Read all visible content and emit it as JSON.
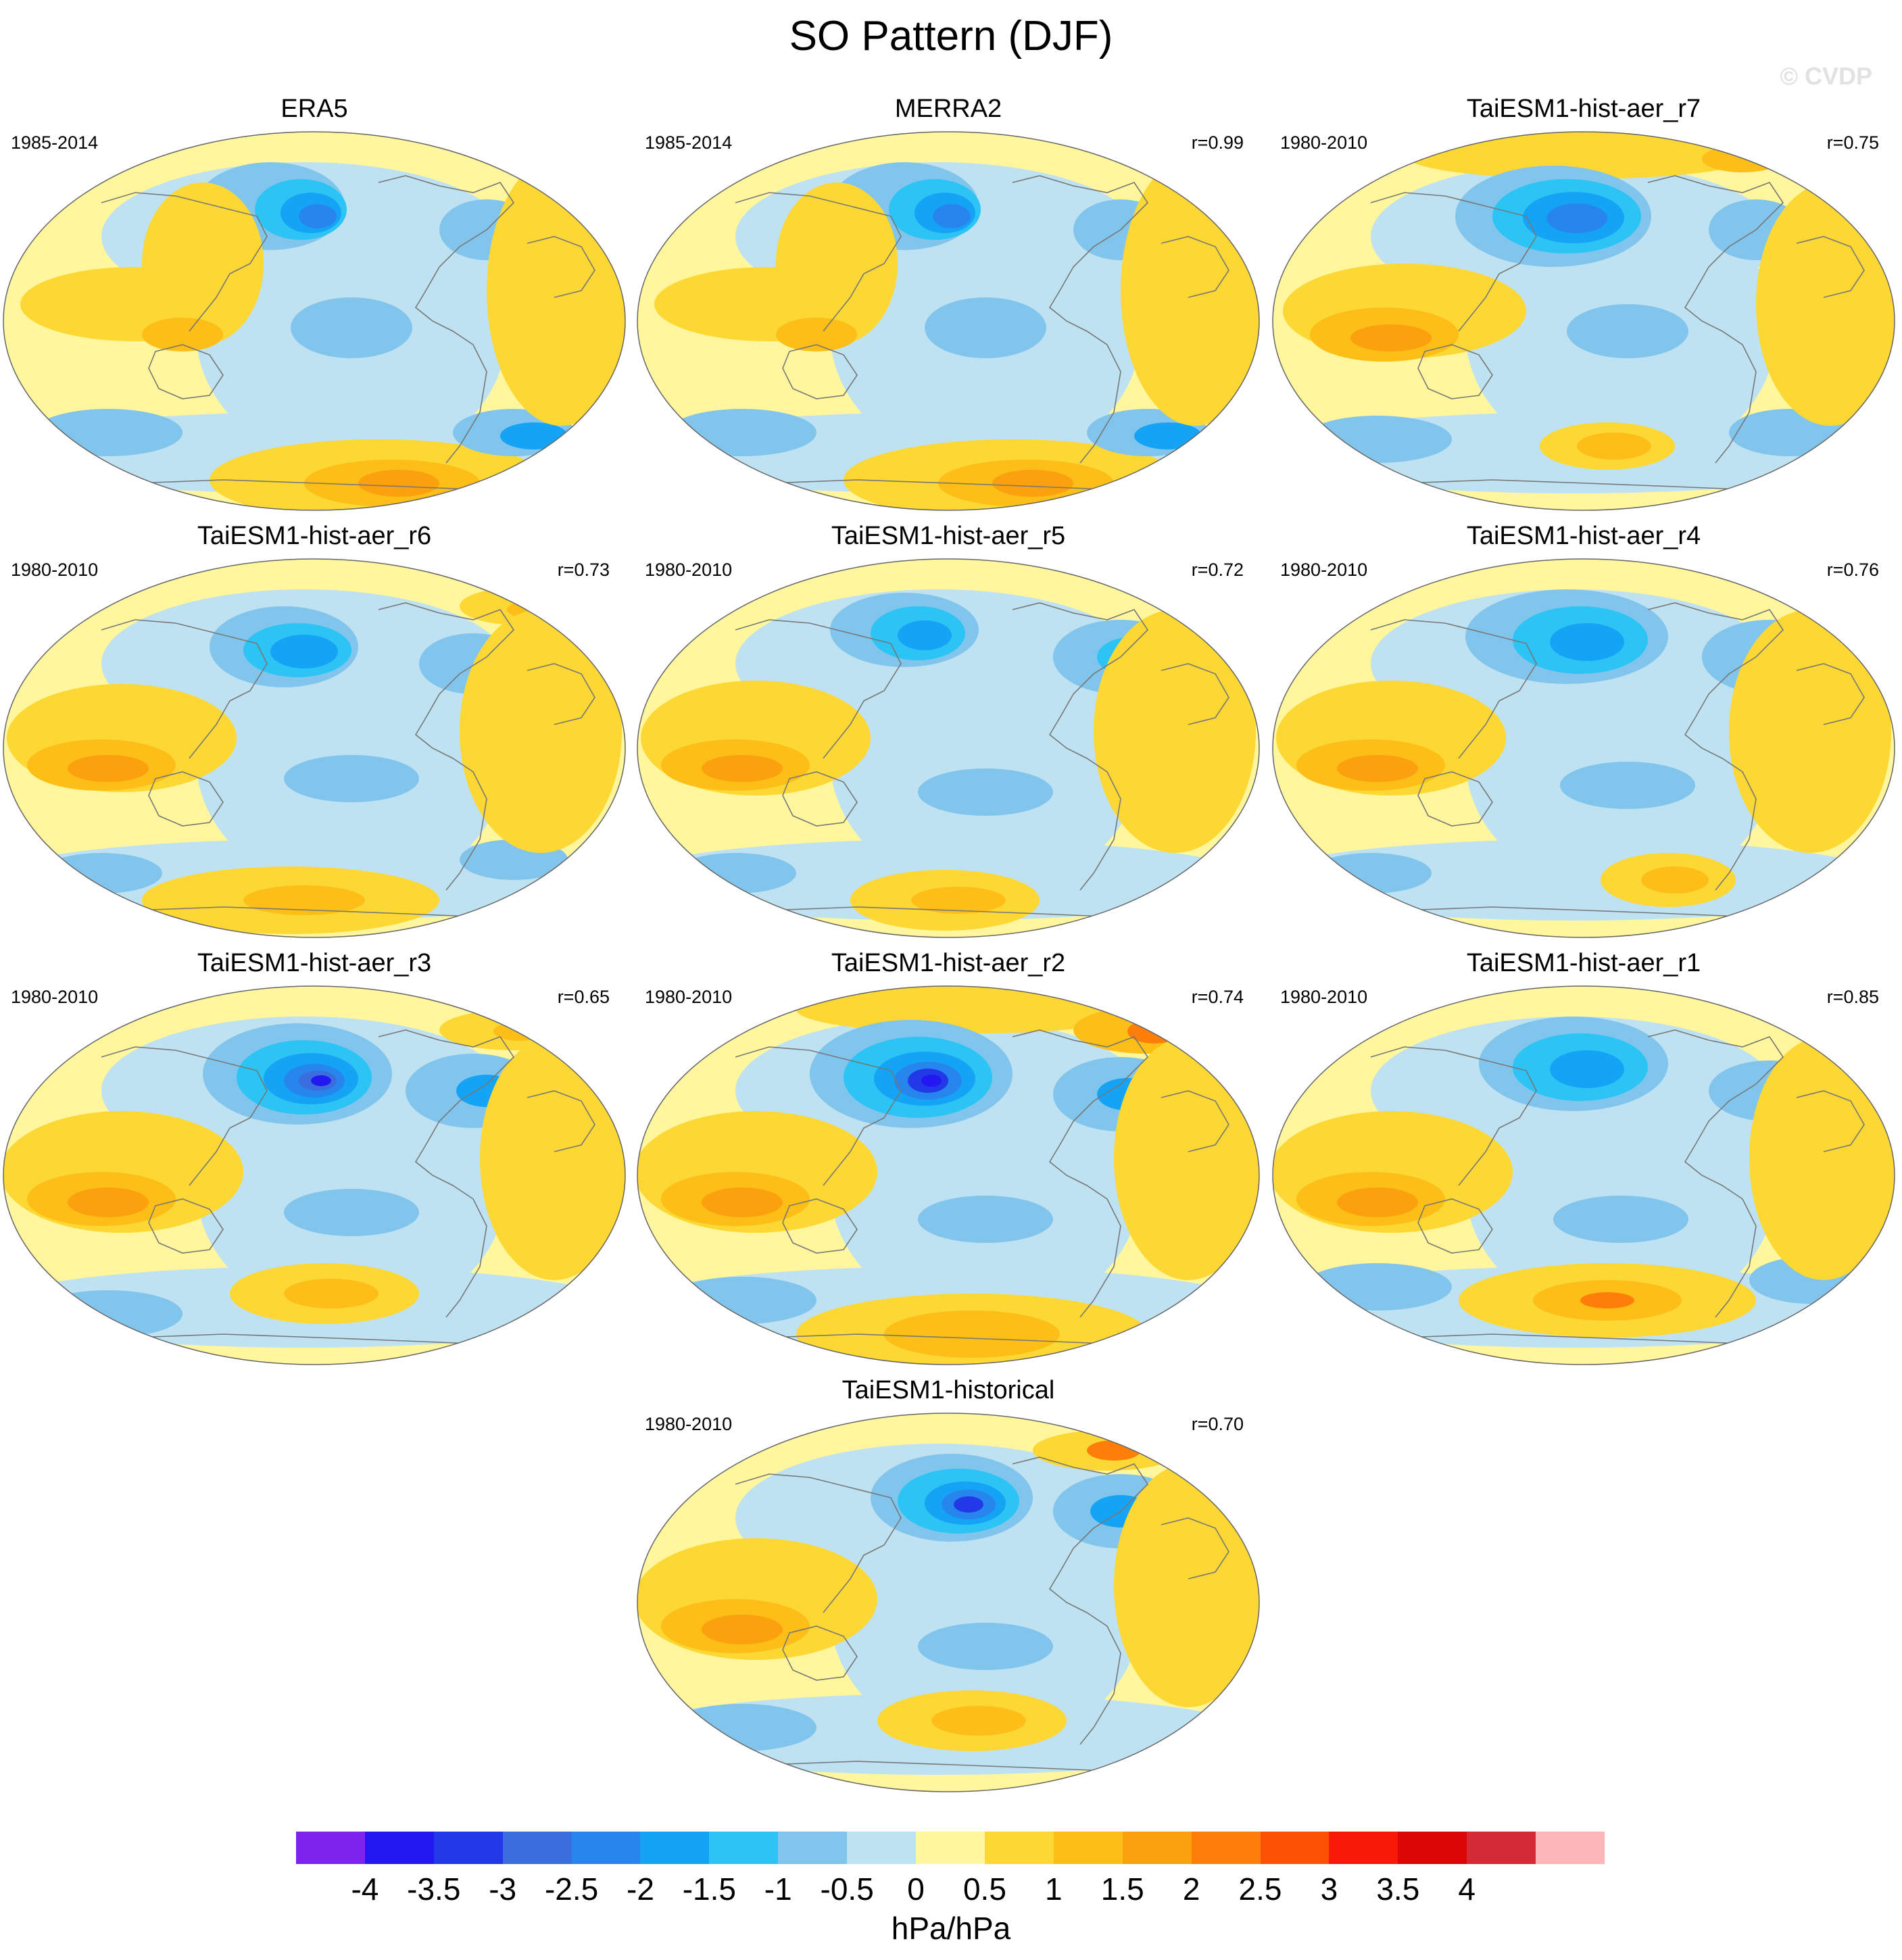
{
  "title": "SO Pattern (DJF)",
  "watermark": "© CVDP",
  "colors": {
    "c_m4": "#7f23ef",
    "c_m35": "#2418f2",
    "c_m3": "#2239e8",
    "c_m25": "#3a6ede",
    "c_m2": "#2786ee",
    "c_m15": "#15a4f5",
    "c_m1": "#2bc4f4",
    "c_m05": "#82c5ec",
    "c_0n": "#bfe2f3",
    "c_0p": "#fff69d",
    "c_05": "#fdd733",
    "c_1": "#fcbe17",
    "c_15": "#fba10d",
    "c_2": "#fd7e08",
    "c_25": "#fd5203",
    "c_3": "#f91908",
    "c_35": "#dc0606",
    "c_4": "#d32a35",
    "c_max": "#fdb6b7",
    "land": "#777777",
    "outline": "#666666"
  },
  "panels": [
    {
      "title": "ERA5",
      "period": "1985-2014",
      "corr": "",
      "blobs": [
        [
          "c_m05",
          400,
          115,
          110,
          65
        ],
        [
          "c_m1",
          445,
          120,
          68,
          45
        ],
        [
          "c_m15",
          460,
          125,
          45,
          30
        ],
        [
          "c_m2",
          470,
          130,
          28,
          18
        ],
        [
          "c_m05",
          720,
          150,
          70,
          45
        ],
        [
          "c_05",
          200,
          260,
          170,
          55
        ],
        [
          "c_05",
          300,
          200,
          90,
          120
        ],
        [
          "c_1",
          270,
          305,
          60,
          25
        ],
        [
          "c_m05",
          520,
          295,
          90,
          45
        ],
        [
          "c_05",
          560,
          520,
          250,
          60
        ],
        [
          "c_1",
          580,
          525,
          130,
          35
        ],
        [
          "c_15",
          590,
          525,
          60,
          20
        ],
        [
          "c_m05",
          160,
          450,
          110,
          35
        ],
        [
          "c_m05",
          760,
          450,
          90,
          35
        ],
        [
          "c_m15",
          790,
          455,
          50,
          20
        ],
        [
          "c_05",
          830,
          240,
          110,
          200
        ]
      ]
    },
    {
      "title": "MERRA2",
      "period": "1985-2014",
      "corr": "r=0.99",
      "blobs": [
        [
          "c_m05",
          400,
          115,
          110,
          65
        ],
        [
          "c_m1",
          445,
          120,
          68,
          45
        ],
        [
          "c_m15",
          460,
          125,
          45,
          30
        ],
        [
          "c_m2",
          470,
          130,
          28,
          18
        ],
        [
          "c_m05",
          720,
          150,
          70,
          45
        ],
        [
          "c_05",
          200,
          260,
          170,
          55
        ],
        [
          "c_05",
          300,
          200,
          90,
          120
        ],
        [
          "c_1",
          270,
          305,
          60,
          25
        ],
        [
          "c_m05",
          520,
          295,
          90,
          45
        ],
        [
          "c_05",
          560,
          520,
          250,
          60
        ],
        [
          "c_1",
          580,
          525,
          130,
          35
        ],
        [
          "c_15",
          590,
          525,
          60,
          20
        ],
        [
          "c_m05",
          160,
          450,
          110,
          35
        ],
        [
          "c_m05",
          760,
          450,
          90,
          35
        ],
        [
          "c_m15",
          790,
          455,
          50,
          20
        ],
        [
          "c_05",
          830,
          240,
          110,
          200
        ]
      ]
    },
    {
      "title": "TaiESM1-hist-aer_r7",
      "period": "1980-2010",
      "corr": "r=0.75",
      "blobs": [
        [
          "c_05",
          460,
          40,
          260,
          35
        ],
        [
          "c_1",
          700,
          45,
          60,
          20
        ],
        [
          "c_m05",
          420,
          130,
          145,
          75
        ],
        [
          "c_m1",
          440,
          130,
          110,
          55
        ],
        [
          "c_m15",
          450,
          132,
          75,
          38
        ],
        [
          "c_m2",
          455,
          133,
          45,
          22
        ],
        [
          "c_m05",
          720,
          150,
          70,
          45
        ],
        [
          "c_05",
          200,
          270,
          180,
          70
        ],
        [
          "c_1",
          170,
          305,
          110,
          40
        ],
        [
          "c_15",
          180,
          310,
          60,
          20
        ],
        [
          "c_m05",
          530,
          300,
          90,
          40
        ],
        [
          "c_05",
          500,
          470,
          100,
          35
        ],
        [
          "c_1",
          510,
          470,
          55,
          20
        ],
        [
          "c_m05",
          160,
          460,
          110,
          35
        ],
        [
          "c_m05",
          770,
          450,
          90,
          35
        ],
        [
          "c_05",
          830,
          260,
          110,
          180
        ]
      ]
    },
    {
      "title": "TaiESM1-hist-aer_r6",
      "period": "1980-2010",
      "corr": "r=0.73",
      "blobs": [
        [
          "c_05",
          770,
          75,
          90,
          28
        ],
        [
          "c_1",
          790,
          80,
          40,
          14
        ],
        [
          "c_m05",
          420,
          135,
          110,
          60
        ],
        [
          "c_m1",
          440,
          140,
          80,
          40
        ],
        [
          "c_m15",
          450,
          142,
          50,
          25
        ],
        [
          "c_m05",
          700,
          160,
          80,
          45
        ],
        [
          "c_05",
          180,
          270,
          170,
          80
        ],
        [
          "c_1",
          150,
          310,
          110,
          38
        ],
        [
          "c_15",
          160,
          315,
          60,
          20
        ],
        [
          "c_m05",
          520,
          330,
          100,
          35
        ],
        [
          "c_05",
          430,
          510,
          220,
          50
        ],
        [
          "c_1",
          450,
          510,
          90,
          22
        ],
        [
          "c_m05",
          150,
          470,
          90,
          30
        ],
        [
          "c_m05",
          760,
          450,
          80,
          30
        ],
        [
          "c_05",
          800,
          260,
          120,
          180
        ]
      ]
    },
    {
      "title": "TaiESM1-hist-aer_r5",
      "period": "1980-2010",
      "corr": "r=0.72",
      "blobs": [
        [
          "c_m05",
          400,
          110,
          110,
          55
        ],
        [
          "c_m1",
          420,
          115,
          70,
          40
        ],
        [
          "c_m15",
          430,
          118,
          40,
          22
        ],
        [
          "c_m05",
          720,
          150,
          100,
          55
        ],
        [
          "c_m1",
          740,
          150,
          55,
          30
        ],
        [
          "c_05",
          180,
          270,
          170,
          85
        ],
        [
          "c_1",
          150,
          310,
          110,
          38
        ],
        [
          "c_15",
          160,
          315,
          60,
          20
        ],
        [
          "c_m05",
          520,
          350,
          100,
          35
        ],
        [
          "c_05",
          460,
          510,
          140,
          45
        ],
        [
          "c_1",
          480,
          510,
          70,
          20
        ],
        [
          "c_m05",
          150,
          470,
          90,
          30
        ],
        [
          "c_05",
          800,
          260,
          120,
          180
        ]
      ]
    },
    {
      "title": "TaiESM1-hist-aer_r4",
      "period": "1980-2010",
      "corr": "r=0.76",
      "blobs": [
        [
          "c_m05",
          440,
          120,
          150,
          70
        ],
        [
          "c_m1",
          460,
          125,
          100,
          50
        ],
        [
          "c_m15",
          470,
          128,
          55,
          28
        ],
        [
          "c_m05",
          740,
          150,
          100,
          55
        ],
        [
          "c_m15",
          760,
          150,
          40,
          22
        ],
        [
          "c_05",
          180,
          270,
          170,
          85
        ],
        [
          "c_1",
          150,
          310,
          110,
          38
        ],
        [
          "c_15",
          160,
          315,
          60,
          20
        ],
        [
          "c_m05",
          530,
          340,
          100,
          35
        ],
        [
          "c_05",
          590,
          480,
          100,
          40
        ],
        [
          "c_1",
          600,
          480,
          50,
          20
        ],
        [
          "c_m05",
          150,
          470,
          90,
          30
        ],
        [
          "c_05",
          800,
          260,
          120,
          180
        ]
      ]
    },
    {
      "title": "TaiESM1-hist-aer_r3",
      "period": "1980-2010",
      "corr": "r=0.65",
      "blobs": [
        [
          "c_05",
          760,
          70,
          110,
          30
        ],
        [
          "c_1",
          770,
          72,
          40,
          14
        ],
        [
          "c_m05",
          440,
          135,
          140,
          75
        ],
        [
          "c_m1",
          450,
          140,
          100,
          55
        ],
        [
          "c_m15",
          460,
          142,
          70,
          38
        ],
        [
          "c_m2",
          465,
          145,
          45,
          25
        ],
        [
          "c_m25",
          470,
          145,
          28,
          15
        ],
        [
          "c_m35",
          475,
          145,
          15,
          8
        ],
        [
          "c_m05",
          700,
          160,
          100,
          55
        ],
        [
          "c_m15",
          720,
          160,
          45,
          24
        ],
        [
          "c_05",
          180,
          280,
          180,
          90
        ],
        [
          "c_1",
          150,
          320,
          110,
          40
        ],
        [
          "c_15",
          160,
          325,
          60,
          22
        ],
        [
          "c_m05",
          520,
          340,
          100,
          35
        ],
        [
          "c_05",
          480,
          460,
          140,
          45
        ],
        [
          "c_1",
          490,
          460,
          70,
          22
        ],
        [
          "c_m05",
          160,
          490,
          110,
          35
        ],
        [
          "c_05",
          820,
          260,
          110,
          180
        ]
      ]
    },
    {
      "title": "TaiESM1-hist-aer_r2",
      "period": "1980-2010",
      "corr": "r=0.74",
      "blobs": [
        [
          "c_05",
          500,
          40,
          260,
          35
        ],
        [
          "c_1",
          760,
          70,
          110,
          35
        ],
        [
          "c_2",
          770,
          72,
          40,
          18
        ],
        [
          "c_m05",
          410,
          135,
          150,
          80
        ],
        [
          "c_m1",
          420,
          140,
          110,
          60
        ],
        [
          "c_m15",
          430,
          142,
          75,
          40
        ],
        [
          "c_m2",
          435,
          145,
          50,
          28
        ],
        [
          "c_m3",
          435,
          145,
          30,
          18
        ],
        [
          "c_m35",
          440,
          145,
          15,
          9
        ],
        [
          "c_m05",
          720,
          165,
          100,
          55
        ],
        [
          "c_m15",
          730,
          165,
          45,
          24
        ],
        [
          "c_05",
          180,
          280,
          180,
          90
        ],
        [
          "c_1",
          150,
          320,
          110,
          40
        ],
        [
          "c_15",
          160,
          325,
          60,
          22
        ],
        [
          "c_m05",
          520,
          350,
          100,
          35
        ],
        [
          "c_05",
          500,
          520,
          260,
          60
        ],
        [
          "c_1",
          500,
          520,
          130,
          35
        ],
        [
          "c_m05",
          160,
          470,
          110,
          35
        ],
        [
          "c_05",
          820,
          260,
          110,
          180
        ]
      ]
    },
    {
      "title": "TaiESM1-hist-aer_r1",
      "period": "1980-2010",
      "corr": "r=0.85",
      "blobs": [
        [
          "c_m05",
          450,
          120,
          140,
          70
        ],
        [
          "c_m1",
          460,
          125,
          100,
          50
        ],
        [
          "c_m15",
          470,
          128,
          55,
          28
        ],
        [
          "c_m05",
          740,
          160,
          90,
          45
        ],
        [
          "c_05",
          180,
          280,
          180,
          90
        ],
        [
          "c_1",
          150,
          320,
          110,
          40
        ],
        [
          "c_15",
          160,
          325,
          60,
          22
        ],
        [
          "c_m05",
          520,
          350,
          100,
          35
        ],
        [
          "c_05",
          500,
          470,
          220,
          55
        ],
        [
          "c_1",
          500,
          470,
          110,
          30
        ],
        [
          "c_2",
          500,
          470,
          40,
          12
        ],
        [
          "c_m05",
          160,
          450,
          110,
          35
        ],
        [
          "c_m05",
          800,
          440,
          90,
          35
        ],
        [
          "c_05",
          820,
          260,
          110,
          180
        ]
      ]
    },
    {
      "title": "TaiESM1-historical",
      "period": "1980-2010",
      "corr": "r=0.70",
      "blobs": [
        [
          "c_05",
          700,
          60,
          110,
          30
        ],
        [
          "c_2",
          710,
          60,
          40,
          15
        ],
        [
          "c_m05",
          470,
          130,
          120,
          65
        ],
        [
          "c_m1",
          480,
          135,
          90,
          48
        ],
        [
          "c_m15",
          490,
          138,
          60,
          32
        ],
        [
          "c_m2",
          495,
          140,
          40,
          22
        ],
        [
          "c_m3",
          495,
          140,
          22,
          12
        ],
        [
          "c_m05",
          720,
          150,
          100,
          55
        ],
        [
          "c_m15",
          720,
          150,
          45,
          24
        ],
        [
          "c_05",
          180,
          280,
          180,
          90
        ],
        [
          "c_1",
          150,
          320,
          110,
          40
        ],
        [
          "c_15",
          160,
          325,
          60,
          22
        ],
        [
          "c_m05",
          520,
          350,
          100,
          35
        ],
        [
          "c_05",
          500,
          460,
          140,
          45
        ],
        [
          "c_1",
          510,
          460,
          70,
          22
        ],
        [
          "c_m05",
          160,
          470,
          110,
          35
        ],
        [
          "c_05",
          820,
          260,
          110,
          180
        ]
      ]
    }
  ],
  "colorbar": {
    "boxes": [
      "c_m4",
      "c_m35",
      "c_m3",
      "c_m25",
      "c_m2",
      "c_m15",
      "c_m1",
      "c_m05",
      "c_0n",
      "c_0p",
      "c_05",
      "c_1",
      "c_15",
      "c_2",
      "c_25",
      "c_3",
      "c_35",
      "c_4",
      "c_max"
    ],
    "ticks": [
      "-4",
      "-3.5",
      "-3",
      "-2.5",
      "-2",
      "-1.5",
      "-1",
      "-0.5",
      "0",
      "0.5",
      "1",
      "1.5",
      "2",
      "2.5",
      "3",
      "3.5",
      "4"
    ],
    "units": "hPa/hPa"
  }
}
